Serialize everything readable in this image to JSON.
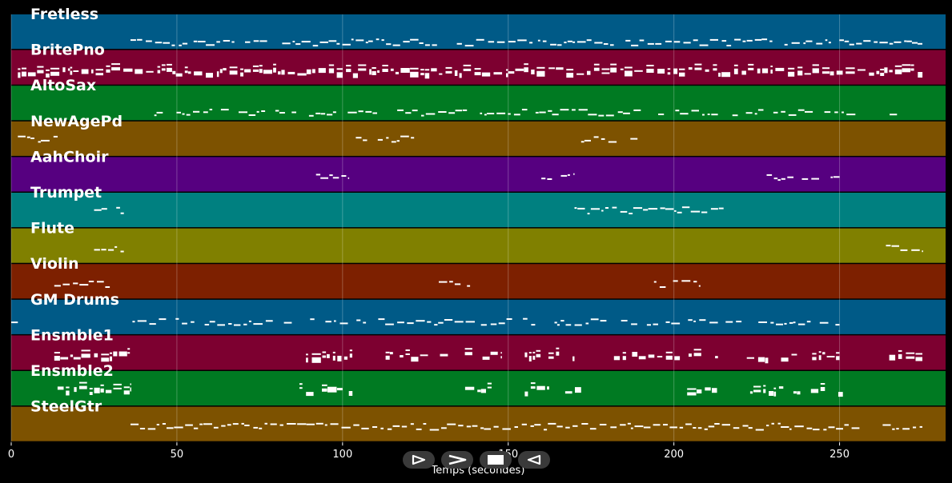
{
  "chart_data": {
    "type": "piano-roll",
    "xlabel": "Temps (secondes)",
    "xlim": [
      0,
      282
    ],
    "x_ticks": [
      0,
      50,
      100,
      150,
      200,
      250
    ],
    "grid": true,
    "tracks": [
      {
        "name": "Fretless",
        "color": "#005a87",
        "spans": [
          [
            36,
            275
          ]
        ],
        "density": 0.9,
        "pitch_level": 0.1
      },
      {
        "name": "BritePno",
        "color": "#7d0030",
        "spans": [
          [
            2,
            275
          ]
        ],
        "density": 1.0,
        "pitch_level": 0.4,
        "thick": true
      },
      {
        "name": "AltoSax",
        "color": "#007a22",
        "spans": [
          [
            36,
            190
          ],
          [
            192,
            268
          ]
        ],
        "density": 0.7,
        "pitch_level": 0.15
      },
      {
        "name": "NewAgePd",
        "color": "#7d5200",
        "spans": [
          [
            2,
            14
          ],
          [
            104,
            124
          ],
          [
            172,
            190
          ]
        ],
        "density": 0.8,
        "pitch_level": 0.55
      },
      {
        "name": "AahChoir",
        "color": "#560080",
        "spans": [
          [
            92,
            102
          ],
          [
            160,
            170
          ],
          [
            228,
            250
          ]
        ],
        "density": 0.8,
        "pitch_level": 0.45
      },
      {
        "name": "Trumpet",
        "color": "#008080",
        "spans": [
          [
            25,
            34
          ],
          [
            170,
            215
          ]
        ],
        "density": 0.9,
        "pitch_level": 0.55
      },
      {
        "name": "Flute",
        "color": "#808000",
        "spans": [
          [
            25,
            34
          ],
          [
            264,
            275
          ]
        ],
        "density": 0.9,
        "pitch_level": 0.45
      },
      {
        "name": "Violin",
        "color": "#7d2000",
        "spans": [
          [
            13,
            36
          ],
          [
            126,
            140
          ],
          [
            194,
            208
          ]
        ],
        "density": 0.8,
        "pitch_level": 0.45
      },
      {
        "name": "GM Drums",
        "color": "#005a87",
        "spans": [
          [
            0,
            2
          ],
          [
            35,
            250
          ]
        ],
        "density": 0.7,
        "pitch_level": 0.35
      },
      {
        "name": "Ensmble1",
        "color": "#7d0030",
        "spans": [
          [
            13,
            36
          ],
          [
            87,
            103
          ],
          [
            113,
            148
          ],
          [
            155,
            170
          ],
          [
            180,
            215
          ],
          [
            222,
            250
          ],
          [
            265,
            275
          ]
        ],
        "density": 0.8,
        "pitch_level": 0.45,
        "thick": true
      },
      {
        "name": "Ensmble2",
        "color": "#007a22",
        "spans": [
          [
            14,
            36
          ],
          [
            87,
            103
          ],
          [
            137,
            145
          ],
          [
            155,
            172
          ],
          [
            204,
            213
          ],
          [
            222,
            251
          ]
        ],
        "density": 0.8,
        "pitch_level": 0.5,
        "thick": true
      },
      {
        "name": "SteelGtr",
        "color": "#7d5200",
        "spans": [
          [
            36,
            256
          ],
          [
            263,
            275
          ]
        ],
        "density": 1.0,
        "pitch_level": 0.45
      }
    ]
  },
  "controls": [
    {
      "name": "play-from-start-button",
      "icon": "play-outline-icon"
    },
    {
      "name": "forward-button",
      "icon": "chevron-right-icon"
    },
    {
      "name": "stop-button",
      "icon": "stop-square-icon"
    },
    {
      "name": "rewind-button",
      "icon": "triangle-left-icon"
    }
  ]
}
